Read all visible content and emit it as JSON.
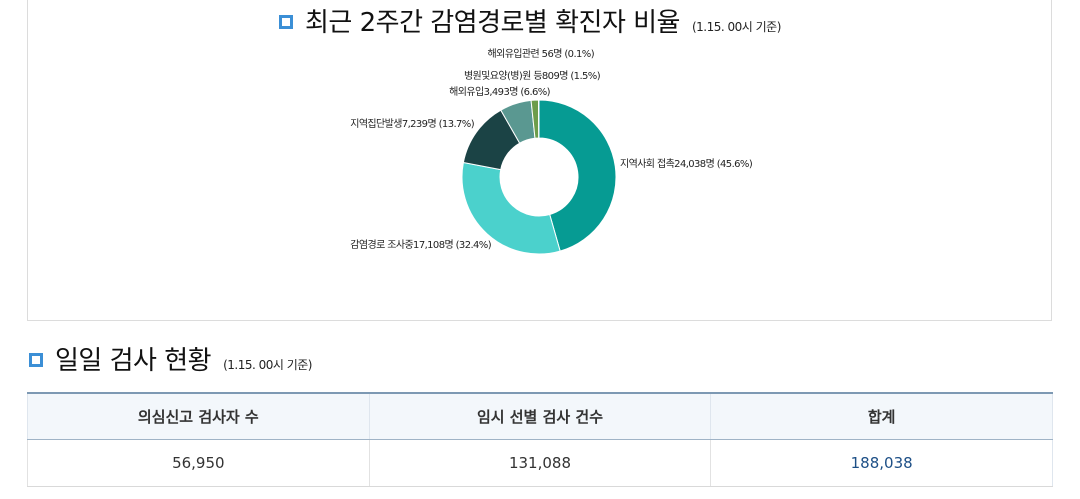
{
  "chart_section": {
    "title": "최근 2주간 감염경로별 확진자 비율",
    "note": "(1.15. 00시 기준)"
  },
  "chart_data": {
    "type": "pie",
    "title": "최근 2주간 감염경로별 확진자 비율",
    "subtitle": "(1.15. 00시 기준)",
    "slices": [
      {
        "label": "지역사회 접촉24,038명 (45.6%)",
        "value": 24038,
        "percent": 45.6,
        "color": "#069b93"
      },
      {
        "label": "감염경로 조사중17,108명 (32.4%)",
        "value": 17108,
        "percent": 32.4,
        "color": "#4bd1cc"
      },
      {
        "label": "지역집단발생7,239명 (13.7%)",
        "value": 7239,
        "percent": 13.7,
        "color": "#1b4345"
      },
      {
        "label": "해외유입3,493명 (6.6%)",
        "value": 3493,
        "percent": 6.6,
        "color": "#5a9891"
      },
      {
        "label": "병원및요양(병)원 등809명 (1.5%)",
        "value": 809,
        "percent": 1.5,
        "color": "#6d9d4b"
      },
      {
        "label": "해외유입관련 56명 (0.1%)",
        "value": 56,
        "percent": 0.1,
        "color": "#3a7a3a"
      }
    ]
  },
  "test_section": {
    "title": "일일 검사 현황",
    "note": "(1.15. 00시 기준)",
    "table": {
      "headers": [
        "의심신고 검사자 수",
        "임시 선별 검사 건수",
        "합계"
      ],
      "rows": [
        [
          "56,950",
          "131,088",
          "188,038"
        ]
      ]
    }
  }
}
